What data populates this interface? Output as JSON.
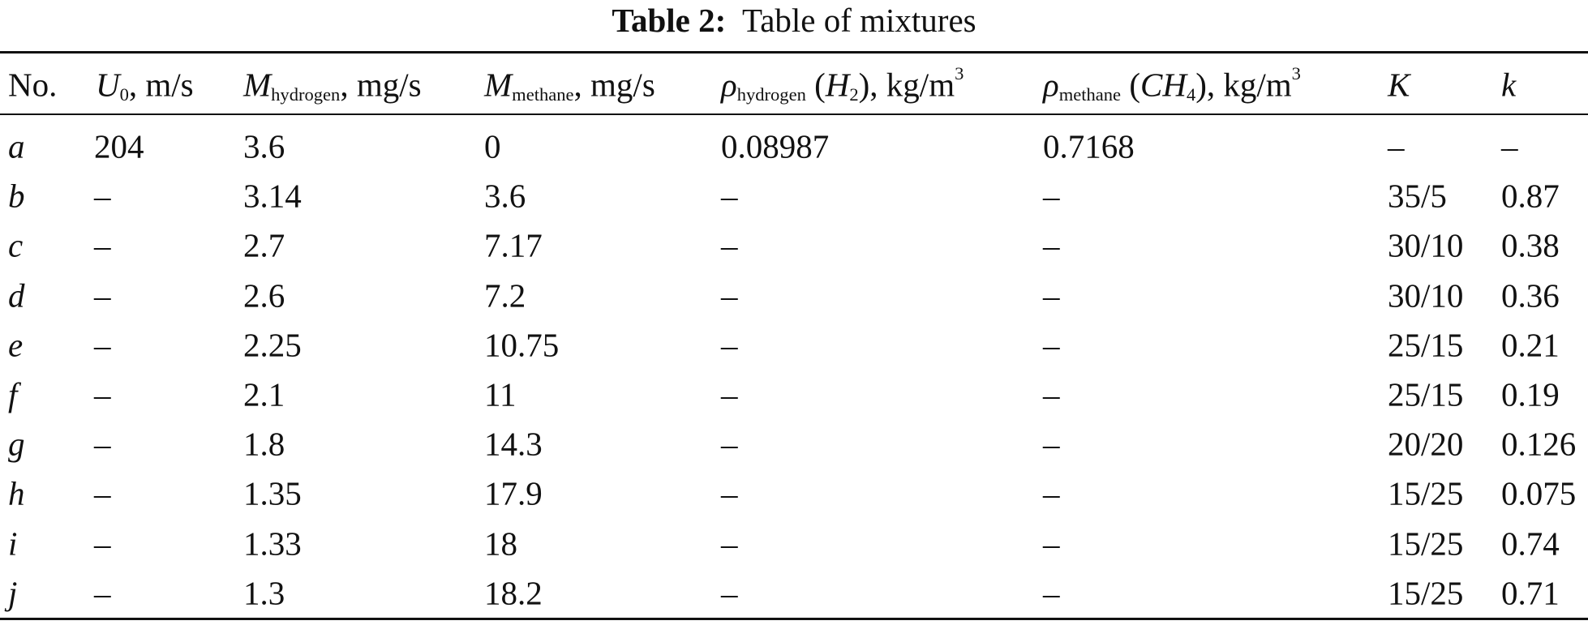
{
  "caption": {
    "label": "Table 2:",
    "text": "Table of mixtures"
  },
  "table": {
    "header": [
      [
        "No."
      ],
      [
        "U",
        "0",
        ", m/s"
      ],
      [
        "M",
        "hydrogen",
        ", mg/s"
      ],
      [
        "M",
        "methane",
        ", mg/s"
      ],
      [
        "ρ",
        "hydrogen",
        " (",
        "H",
        "2",
        "), kg/m",
        "3"
      ],
      [
        "ρ",
        "methane",
        " (",
        "CH",
        "4",
        "), kg/m",
        "3"
      ],
      [
        "K"
      ],
      [
        "k"
      ]
    ],
    "rows": [
      [
        "a",
        "204",
        "3.6",
        "0",
        "0.08987",
        "0.7168",
        "–",
        "–"
      ],
      [
        "b",
        "–",
        "3.14",
        "3.6",
        "–",
        "–",
        "35/5",
        "0.87"
      ],
      [
        "c",
        "–",
        "2.7",
        "7.17",
        "–",
        "–",
        "30/10",
        "0.38"
      ],
      [
        "d",
        "–",
        "2.6",
        "7.2",
        "–",
        "–",
        "30/10",
        "0.36"
      ],
      [
        "e",
        "–",
        "2.25",
        "10.75",
        "–",
        "–",
        "25/15",
        "0.21"
      ],
      [
        "f",
        "–",
        "2.1",
        "11",
        "–",
        "–",
        "25/15",
        "0.19"
      ],
      [
        "g",
        "–",
        "1.8",
        "14.3",
        "–",
        "–",
        "20/20",
        "0.126"
      ],
      [
        "h",
        "–",
        "1.35",
        "17.9",
        "–",
        "–",
        "15/25",
        "0.075"
      ],
      [
        "i",
        "–",
        "1.33",
        "18",
        "–",
        "–",
        "15/25",
        "0.74"
      ],
      [
        "j",
        "–",
        "1.3",
        "18.2",
        "–",
        "–",
        "15/25",
        "0.71"
      ]
    ]
  }
}
